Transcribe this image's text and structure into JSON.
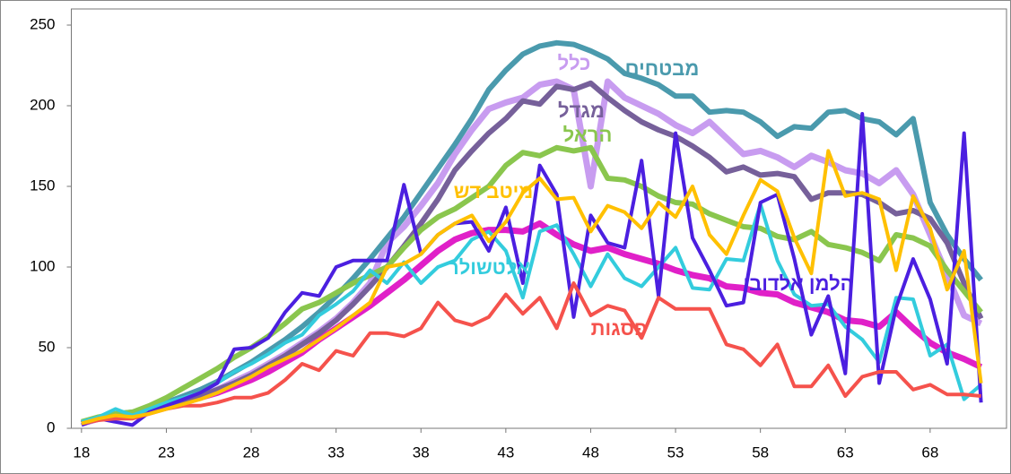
{
  "chart_data": {
    "type": "line",
    "x": [
      18,
      19,
      20,
      21,
      22,
      23,
      24,
      25,
      26,
      27,
      28,
      29,
      30,
      31,
      32,
      33,
      34,
      35,
      36,
      37,
      38,
      39,
      40,
      41,
      42,
      43,
      44,
      45,
      46,
      47,
      48,
      49,
      50,
      51,
      52,
      53,
      54,
      55,
      56,
      57,
      58,
      59,
      60,
      61,
      62,
      63,
      64,
      65,
      66,
      67,
      68,
      69,
      70,
      71
    ],
    "xlim": [
      17.4,
      72.5
    ],
    "xticks": [
      18,
      23,
      28,
      33,
      38,
      43,
      48,
      53,
      58,
      63,
      68
    ],
    "ylim": [
      0,
      260
    ],
    "yticks": [
      0,
      50,
      100,
      150,
      200,
      250
    ],
    "series": [
      {
        "color": "#e020c8",
        "values": [
          3,
          6,
          7,
          7,
          10,
          13,
          16,
          19,
          22,
          26,
          30,
          35,
          41,
          47,
          55,
          62,
          69,
          76,
          84,
          92,
          101,
          110,
          117,
          121,
          123,
          123,
          122,
          127,
          120,
          114,
          110,
          112,
          108,
          105,
          102,
          98,
          95,
          93,
          88,
          87,
          84,
          83,
          78,
          75,
          72,
          67,
          66,
          63,
          72,
          62,
          53,
          47,
          43,
          38
        ]
      },
      {
        "name": "כלל",
        "color": "#c89cf0",
        "values": [
          3,
          6,
          8,
          9,
          11,
          14,
          17,
          20,
          24,
          29,
          34,
          40,
          46,
          53,
          60,
          68,
          78,
          90,
          115,
          125,
          138,
          152,
          170,
          185,
          198,
          202,
          205,
          213,
          215,
          210,
          150,
          215,
          205,
          200,
          195,
          188,
          183,
          190,
          180,
          170,
          172,
          168,
          162,
          169,
          165,
          160,
          158,
          152,
          160,
          145,
          120,
          95,
          70,
          65
        ]
      },
      {
        "name": "מבטחים",
        "color": "#4a9aad",
        "values": [
          3,
          6,
          9,
          10,
          12,
          16,
          20,
          24,
          29,
          35,
          41,
          48,
          55,
          63,
          72,
          82,
          93,
          105,
          118,
          131,
          146,
          161,
          176,
          192,
          210,
          222,
          232,
          237,
          239,
          238,
          234,
          229,
          220,
          217,
          213,
          206,
          206,
          196,
          197,
          196,
          190,
          181,
          187,
          186,
          196,
          197,
          192,
          190,
          182,
          192,
          140,
          120,
          105,
          92
        ]
      },
      {
        "name": "מגדל",
        "color": "#76609a",
        "values": [
          3,
          6,
          8,
          9,
          11,
          14,
          17,
          20,
          24,
          28,
          33,
          39,
          45,
          52,
          59,
          67,
          77,
          88,
          100,
          113,
          127,
          142,
          160,
          172,
          183,
          192,
          203,
          201,
          212,
          210,
          214,
          205,
          197,
          190,
          185,
          181,
          175,
          168,
          159,
          162,
          157,
          158,
          156,
          142,
          146,
          146,
          145,
          140,
          133,
          135,
          130,
          115,
          90,
          68
        ]
      },
      {
        "name": "הראל",
        "color": "#8ac64e",
        "values": [
          4,
          7,
          9,
          10,
          14,
          19,
          25,
          31,
          37,
          44,
          50,
          57,
          65,
          74,
          78,
          84,
          90,
          95,
          100,
          112,
          123,
          131,
          136,
          143,
          150,
          163,
          171,
          169,
          174,
          172,
          174,
          155,
          154,
          150,
          144,
          140,
          139,
          133,
          129,
          125,
          124,
          119,
          117,
          122,
          114,
          112,
          109,
          104,
          120,
          118,
          113,
          98,
          85,
          72
        ]
      },
      {
        "name": "אלטשולר",
        "color": "#33ccdd",
        "values": [
          4,
          7,
          12,
          8,
          12,
          16,
          19,
          22,
          28,
          35,
          40,
          46,
          53,
          58,
          70,
          77,
          85,
          98,
          90,
          103,
          90,
          100,
          104,
          117,
          122,
          110,
          81,
          122,
          126,
          108,
          88,
          108,
          93,
          88,
          100,
          112,
          87,
          86,
          105,
          104,
          139,
          104,
          83,
          76,
          77,
          63,
          55,
          41,
          81,
          80,
          45,
          52,
          18,
          27
        ]
      },
      {
        "name": "הלמן אלדובי",
        "color": "#4b1fe0",
        "values": [
          2,
          6,
          4,
          2,
          10,
          14,
          18,
          22,
          28,
          49,
          50,
          56,
          72,
          84,
          82,
          100,
          104,
          104,
          104,
          151,
          108,
          120,
          127,
          128,
          110,
          137,
          90,
          163,
          145,
          69,
          132,
          115,
          112,
          166,
          82,
          183,
          118,
          98,
          76,
          78,
          140,
          145,
          105,
          58,
          82,
          34,
          195,
          28,
          75,
          105,
          80,
          40,
          183,
          16
        ]
      },
      {
        "name": "פסגות",
        "color": "#f5524c",
        "values": [
          3,
          5,
          6,
          6,
          9,
          12,
          14,
          14,
          16,
          19,
          19,
          22,
          30,
          40,
          36,
          48,
          45,
          59,
          59,
          57,
          62,
          78,
          67,
          64,
          69,
          83,
          71,
          81,
          62,
          90,
          70,
          76,
          73,
          56,
          81,
          74,
          74,
          74,
          52,
          49,
          39,
          52,
          26,
          26,
          39,
          20,
          32,
          35,
          35,
          24,
          27,
          21,
          21,
          20
        ]
      },
      {
        "name": "מיטב דש",
        "color": "#ffc000",
        "values": [
          3,
          6,
          8,
          7,
          9,
          12,
          15,
          18,
          22,
          27,
          32,
          38,
          43,
          48,
          55,
          62,
          70,
          78,
          100,
          102,
          108,
          120,
          127,
          132,
          116,
          128,
          146,
          155,
          142,
          143,
          122,
          138,
          134,
          124,
          140,
          131,
          150,
          120,
          108,
          132,
          154,
          147,
          118,
          96,
          172,
          144,
          146,
          142,
          98,
          144,
          124,
          86,
          110,
          28
        ]
      }
    ]
  }
}
